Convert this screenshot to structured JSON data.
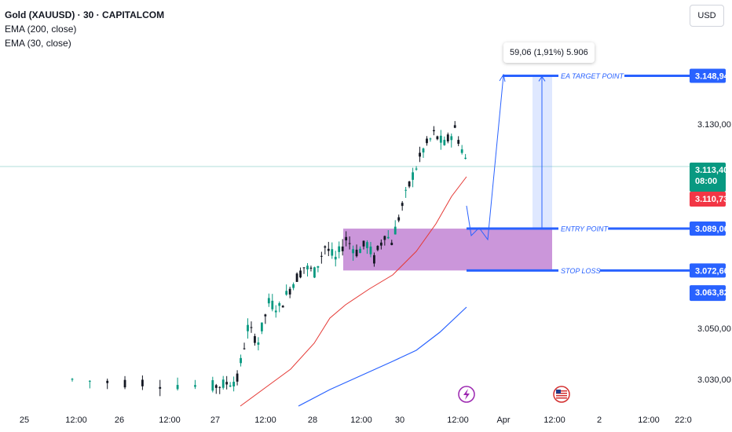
{
  "legend": {
    "title": "Gold (XAUUSD) · 30 · CAPITALCOM",
    "ema200": "EMA (200, close)",
    "ema30": "EMA (30, close)"
  },
  "currency": "USD",
  "measure_label": "59,06 (1,91%) 5.906",
  "colors": {
    "up": "#089981",
    "down": "#131722",
    "ema30": "#e53935",
    "ema200": "#2962ff",
    "zone": "#c890d8",
    "level": "#2962ff",
    "price_badge": "#089981",
    "ema_badge": "#f23645"
  },
  "chart_data": {
    "type": "candlestick",
    "y_ticks": [
      "3.130,00",
      "3.050,00",
      "3.030,00"
    ],
    "x_ticks": [
      "25",
      "12:00",
      "26",
      "12:00",
      "27",
      "12:00",
      "28",
      "12:00",
      "30",
      "12:00",
      "Apr",
      "12:00",
      "2",
      "12:00",
      "22:0"
    ],
    "ylim": [
      3025,
      3162
    ],
    "last_price": {
      "label": "3.113,40",
      "countdown": "08:00",
      "value": 3113.4
    },
    "ema_value": {
      "label": "3.110,73",
      "value": 3110.73
    },
    "levels": [
      {
        "name": "EA TARGET POINT",
        "value": 3148.94,
        "label": "3.148,94"
      },
      {
        "name": "ENTRY POINT",
        "value": 3089.06,
        "label": "3.089,06"
      },
      {
        "name": "STOP LOSS",
        "value": 3072.66,
        "label": "3.072,66"
      }
    ],
    "ema200_last": {
      "value": 3063.82,
      "label": "3.063,82"
    },
    "zone": {
      "top": 3089.06,
      "bottom": 3072.66
    }
  }
}
